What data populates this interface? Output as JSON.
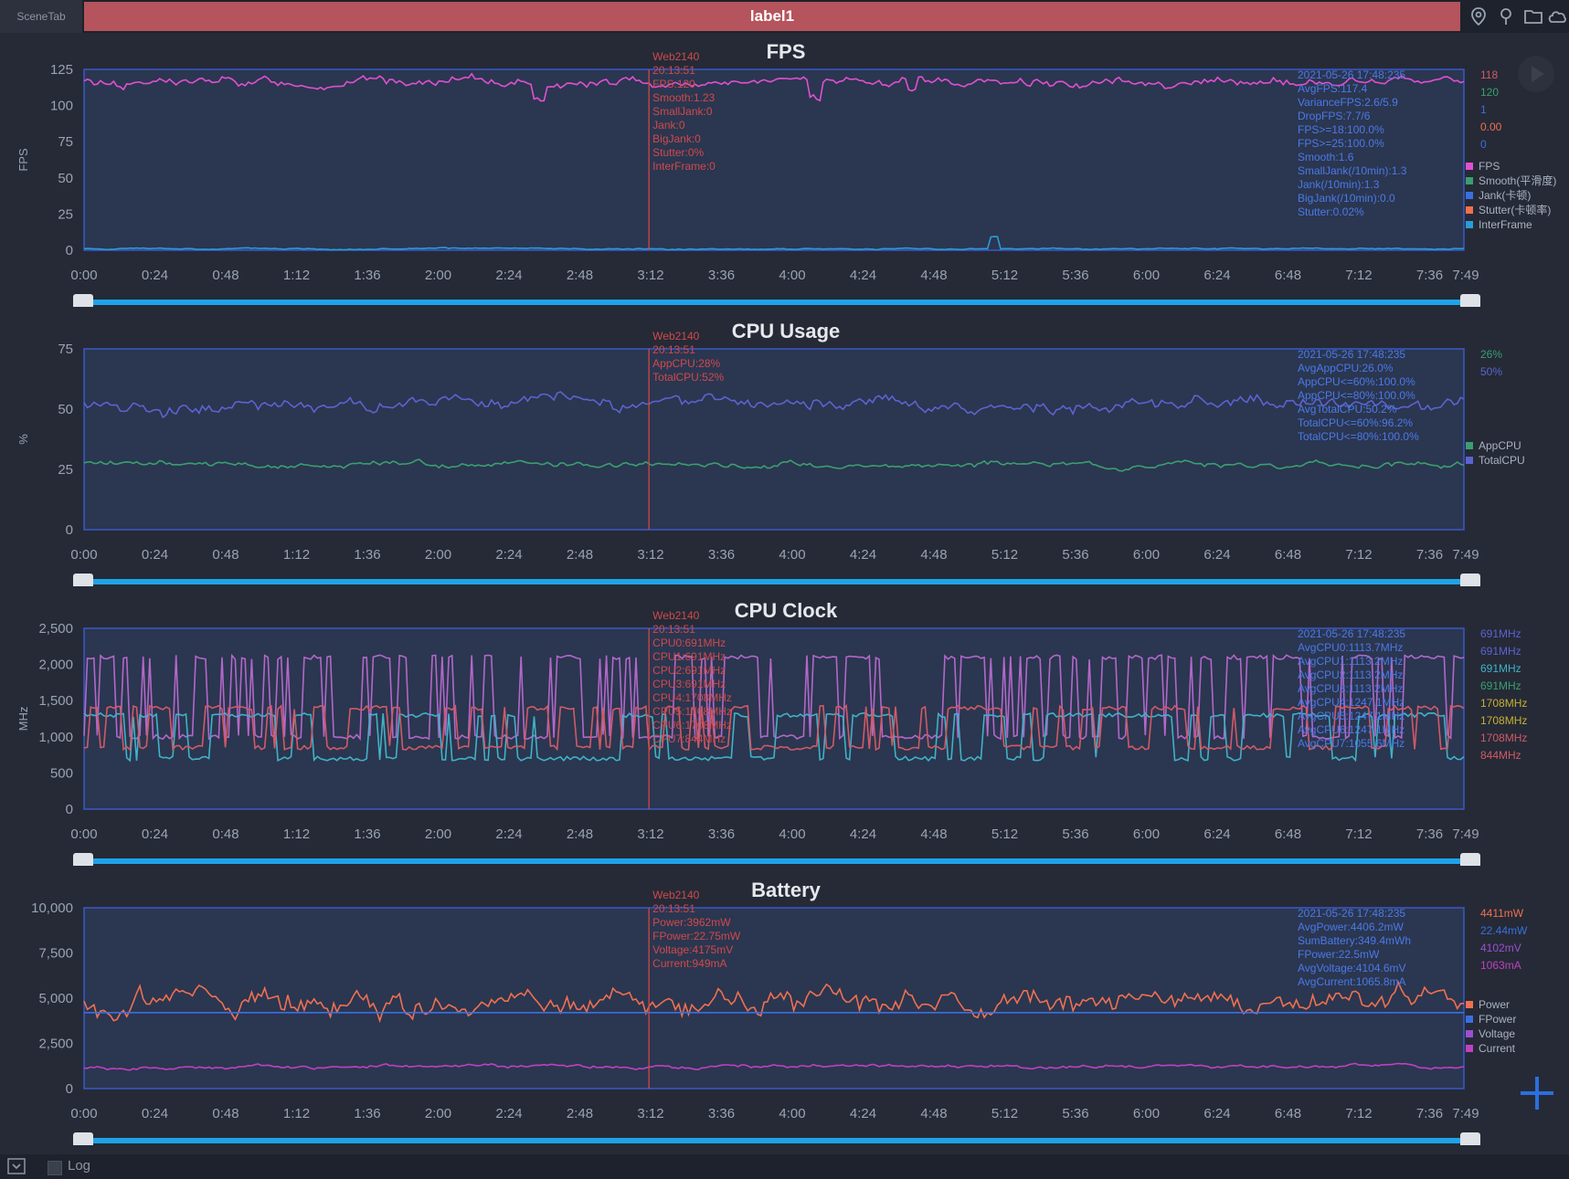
{
  "toolbar": {
    "scene_tab": "SceneTab",
    "label": "label1"
  },
  "icons": [
    "location-icon",
    "pin-icon",
    "folder-icon",
    "cloud-icon"
  ],
  "colors": {
    "background": "#252a36",
    "plot_bg": "#2b3650",
    "plot_border": "#3a58c8",
    "label_bar": "#b5545c",
    "slider": "#1fa3e8",
    "marker": "#c94a4a",
    "fps": "#e050d0",
    "jank": "#3a6fe0",
    "interframe": "#2b9bd6",
    "app_cpu": "#3a9f70",
    "total_cpu": "#5b63d0",
    "cpu0": "#b268c8",
    "cpu1": "#3fb2c6",
    "cpu2": "#d05a66",
    "cpu3": "#6a6ad0",
    "power": "#f07050",
    "voltage": "#9a50d0",
    "current": "#c040c0"
  },
  "time_ticks": [
    "0:00",
    "0:24",
    "0:48",
    "1:12",
    "1:36",
    "2:00",
    "2:24",
    "2:48",
    "3:12",
    "3:36",
    "4:00",
    "4:24",
    "4:48",
    "5:12",
    "5:36",
    "6:00",
    "6:24",
    "6:48",
    "7:12",
    "7:36",
    "7:49"
  ],
  "chart_data": [
    {
      "type": "line",
      "title": "FPS",
      "ylabel": "FPS",
      "yticks": [
        "125",
        "100",
        "75",
        "50",
        "25",
        "0"
      ],
      "ylim": [
        0,
        125
      ],
      "xlim": [
        "0:00",
        "7:49"
      ],
      "grid": false,
      "series": [
        {
          "name": "FPS",
          "color": "#e050d0",
          "base": 116,
          "noise": 4,
          "dips": [
            [
              0.33,
              10
            ],
            [
              0.53,
              12
            ],
            [
              0.6,
              8
            ]
          ]
        },
        {
          "name": "InterFrame",
          "color": "#2b9bd6",
          "base": 1,
          "noise": 0.6,
          "spikes": [
            [
              0.66,
              8
            ]
          ]
        }
      ],
      "marker_time": "3:12",
      "legend": [
        "FPS",
        "Smooth(平滑度)",
        "Jank(卡顿)",
        "Stutter(卡顿率)",
        "InterFrame"
      ],
      "legend_colors": [
        "#e050d0",
        "#3a9f70",
        "#3a6fe0",
        "#f07050",
        "#2b9bd6"
      ],
      "legend_values": [
        "118",
        "120",
        "1",
        "0.00",
        "0"
      ],
      "legend_value_colors": [
        "#d05a66",
        "#3a9f70",
        "#3a6fe0",
        "#f07050",
        "#3a6fe0"
      ],
      "tooltip": [
        "Web2140",
        "20:13:51",
        "FPS:120",
        "Smooth:1.23",
        "SmallJank:0",
        "Jank:0",
        "BigJank:0",
        "Stutter:0%",
        "InterFrame:0"
      ],
      "stats": [
        "2021-05-26 17:48:235",
        "AvgFPS:117.4",
        "VarianceFPS:2.6/5.9",
        "DropFPS:7.7/6",
        "FPS>=18:100.0%",
        "FPS>=25:100.0%",
        "Smooth:1.6",
        "SmallJank(/10min):1.3",
        "Jank(/10min):1.3",
        "BigJank(/10min):0.0",
        "Stutter:0.02%"
      ]
    },
    {
      "type": "line",
      "title": "CPU Usage",
      "ylabel": "%",
      "yticks": [
        "75",
        "50",
        "25",
        "0"
      ],
      "ylim": [
        0,
        75
      ],
      "xlim": [
        "0:00",
        "7:49"
      ],
      "grid": false,
      "series": [
        {
          "name": "TotalCPU",
          "color": "#5b63d0",
          "base": 52,
          "noise": 3.5
        },
        {
          "name": "AppCPU",
          "color": "#3a9f70",
          "base": 27,
          "noise": 1.5
        }
      ],
      "marker_time": "3:12",
      "legend": [
        "AppCPU",
        "TotalCPU"
      ],
      "legend_colors": [
        "#3a9f70",
        "#5b63d0"
      ],
      "legend_values": [
        "26%",
        "50%"
      ],
      "legend_value_colors": [
        "#3a9f70",
        "#5b63d0"
      ],
      "tooltip": [
        "Web2140",
        "20:13:51",
        "AppCPU:28%",
        "TotalCPU:52%"
      ],
      "stats": [
        "2021-05-26 17:48:235",
        "AvgAppCPU:26.0%",
        "AppCPU<=60%:100.0%",
        "AppCPU<=80%:100.0%",
        "AvgTotalCPU:50.2%",
        "TotalCPU<=60%:96.2%",
        "TotalCPU<=80%:100.0%"
      ]
    },
    {
      "type": "line",
      "title": "CPU Clock",
      "ylabel": "MHz",
      "yticks": [
        "2,500",
        "2,000",
        "1,500",
        "1,000",
        "500",
        "0"
      ],
      "ylim": [
        0,
        2500
      ],
      "xlim": [
        "0:00",
        "7:49"
      ],
      "grid": false,
      "series": [
        {
          "name": "CPU0",
          "color": "#b268c8",
          "levels": [
            1000,
            2100
          ],
          "switch": 0.28
        },
        {
          "name": "CPU1",
          "color": "#3fb2c6",
          "levels": [
            700,
            1300
          ],
          "switch": 0.18
        },
        {
          "name": "CPU2",
          "color": "#d05a66",
          "levels": [
            850,
            1400
          ],
          "switch": 0.22
        }
      ],
      "marker_time": "3:12",
      "legend_values": [
        "691MHz",
        "691MHz",
        "691MHz",
        "691MHz",
        "1708MHz",
        "1708MHz",
        "1708MHz",
        "844MHz"
      ],
      "legend_value_colors": [
        "#5b63d0",
        "#5b63d0",
        "#3fb2c6",
        "#3a9f70",
        "#c8b030",
        "#c8b030",
        "#d05a66",
        "#d05a66"
      ],
      "tooltip": [
        "Web2140",
        "20:13:51",
        "CPU0:691MHz",
        "CPU1:691MHz",
        "CPU2:691MHz",
        "CPU3:691MHz",
        "CPU4:1708MHz",
        "CPU5:1708MHz",
        "CPU6:1708MHz",
        "CPU7:844MHz"
      ],
      "stats": [
        "2021-05-26 17:48:235",
        "AvgCPU0:1113.7MHz",
        "AvgCPU1:1113.2MHz",
        "AvgCPU2:1113.2MHz",
        "AvgCPU3:1113.2MHz",
        "AvgCPU4:1247.1MHz",
        "AvgCPU5:1247.1MHz",
        "AvgCPU6:1247.1MHz",
        "AvgCPU7:1055.6MHz"
      ]
    },
    {
      "type": "line",
      "title": "Battery",
      "ylabel": "",
      "yticks": [
        "10,000",
        "7,500",
        "5,000",
        "2,500",
        "0"
      ],
      "ylim": [
        0,
        10000
      ],
      "xlim": [
        "0:00",
        "7:49"
      ],
      "grid": false,
      "series": [
        {
          "name": "Power",
          "color": "#f07050",
          "base": 4800,
          "noise": 900
        },
        {
          "name": "FPower",
          "color": "#3a6fe0",
          "base": 4200,
          "noise": 0
        },
        {
          "name": "Current",
          "color": "#c040c0",
          "base": 1200,
          "noise": 120
        }
      ],
      "marker_time": "3:12",
      "legend": [
        "Power",
        "FPower",
        "Voltage",
        "Current"
      ],
      "legend_colors": [
        "#f07050",
        "#3a6fe0",
        "#9a50d0",
        "#c040c0"
      ],
      "legend_values": [
        "4411mW",
        "22.44mW",
        "4102mV",
        "1063mA"
      ],
      "legend_value_colors": [
        "#f07050",
        "#3a6fe0",
        "#9a50d0",
        "#c040c0"
      ],
      "tooltip": [
        "Web2140",
        "20:13:51",
        "Power:3962mW",
        "FPower:22.75mW",
        "Voltage:4175mV",
        "Current:949mA"
      ],
      "stats": [
        "2021-05-26 17:48:235",
        "AvgPower:4406.2mW",
        "SumBattery:349.4mWh",
        "FPower:22.5mW",
        "AvgVoltage:4104.6mV",
        "AvgCurrent:1065.8mA"
      ]
    }
  ],
  "footer": {
    "log_label": "Log"
  }
}
